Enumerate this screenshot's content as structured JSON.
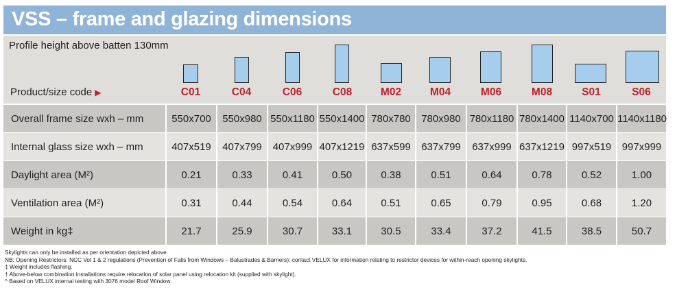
{
  "title": "VSS – frame and glazing dimensions",
  "profile_height": "Profile height above batten 130mm",
  "product_label": "Product/size code",
  "arrow_glyph": "▶",
  "accent_color": "#c0202a",
  "codes": [
    "C01",
    "C04",
    "C06",
    "C08",
    "M02",
    "M04",
    "M06",
    "M08",
    "S01",
    "S06"
  ],
  "rows": [
    {
      "label": "Overall frame size wxh – mm",
      "values": [
        "550x700",
        "550x980",
        "550x1180",
        "550x1400",
        "780x780",
        "780x980",
        "780x1180",
        "780x1400",
        "1140x700",
        "1140x1180"
      ]
    },
    {
      "label": "Internal glass size wxh – mm",
      "values": [
        "407x519",
        "407x799",
        "407x999",
        "407x1219",
        "637x599",
        "637x799",
        "637x999",
        "637x1219",
        "997x519",
        "997x999"
      ]
    },
    {
      "label": "Daylight area (M²)",
      "values": [
        "0.21",
        "0.33",
        "0.41",
        "0.50",
        "0.38",
        "0.51",
        "0.64",
        "0.78",
        "0.52",
        "1.00"
      ]
    },
    {
      "label": "Ventilation area (M²)",
      "values": [
        "0.31",
        "0.44",
        "0.54",
        "0.64",
        "0.51",
        "0.65",
        "0.79",
        "0.95",
        "0.68",
        "1.20"
      ]
    },
    {
      "label": "Weight in kg‡",
      "values": [
        "21.7",
        "25.9",
        "30.7",
        "33.1",
        "30.5",
        "33.4",
        "37.2",
        "41.5",
        "38.5",
        "50.7"
      ]
    }
  ],
  "notes": [
    "Skylights can only be installed as per orientation depicted above.",
    "NB: Opening Restrictors: NCC Vol 1 & 2 regulations (Prevention of Falls from Windows – Balustrades & Barriers): contact VELUX for information relating to restrictor devices for within-reach opening skylights.",
    "‡ Weight includes flashing.",
    "† Above-below combination installations require relocation of solar panel using relocation kit (supplied with skylight).",
    "^ Based on VELUX internal testing with 3076 model Roof Window."
  ]
}
